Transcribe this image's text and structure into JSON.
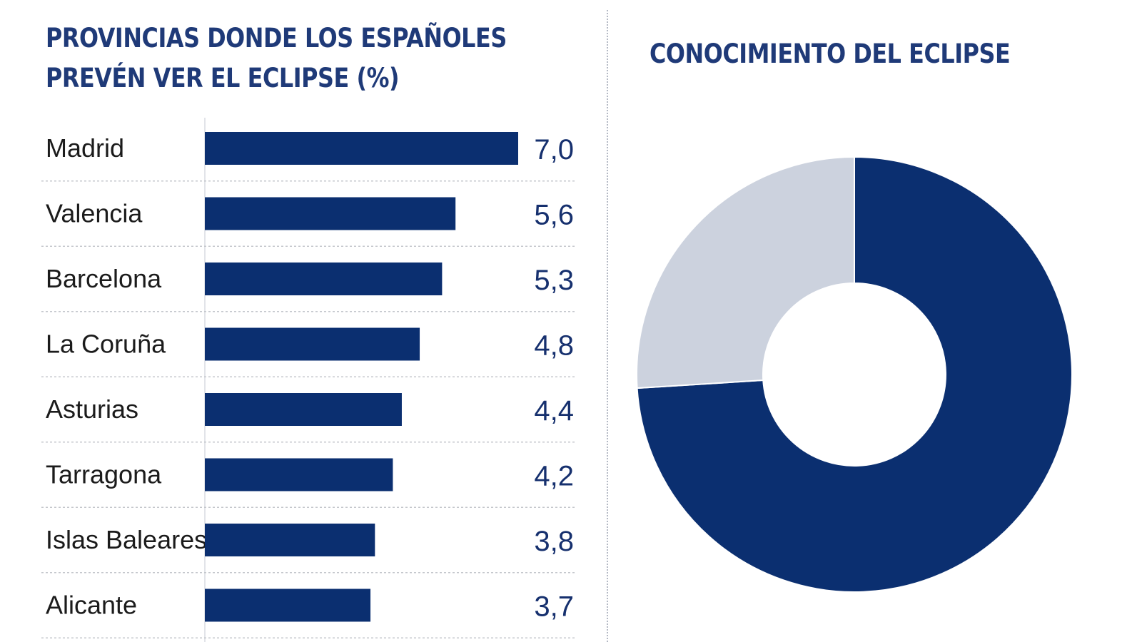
{
  "colors": {
    "bar": "#0b2f70",
    "title": "#1f3a78",
    "donut_primary": "#0b2f70",
    "donut_secondary": "#ccd2de",
    "separator": "#c4c7cc"
  },
  "chart_data": [
    {
      "type": "bar",
      "orientation": "horizontal",
      "title": "PROVINCIAS DONDE LOS ESPAÑOLES\nPREVÉN VER EL ECLIPSE (%)",
      "categories": [
        "Madrid",
        "Valencia",
        "Barcelona",
        "La Coruña",
        "Asturias",
        "Tarragona",
        "Islas Baleares",
        "Alicante"
      ],
      "values": [
        7.0,
        5.6,
        5.3,
        4.8,
        4.4,
        4.2,
        3.8,
        3.7
      ],
      "value_labels": [
        "7,0",
        "5,6",
        "5,3",
        "4,8",
        "4,4",
        "4,2",
        "3,8",
        "3,7"
      ],
      "xlim": [
        0,
        7.0
      ],
      "legend": "none",
      "grid": false
    },
    {
      "type": "pie",
      "style": "donut",
      "title": "CONOCIMIENTO DEL ECLIPSE",
      "values": [
        74,
        26
      ],
      "legend": "none"
    }
  ]
}
